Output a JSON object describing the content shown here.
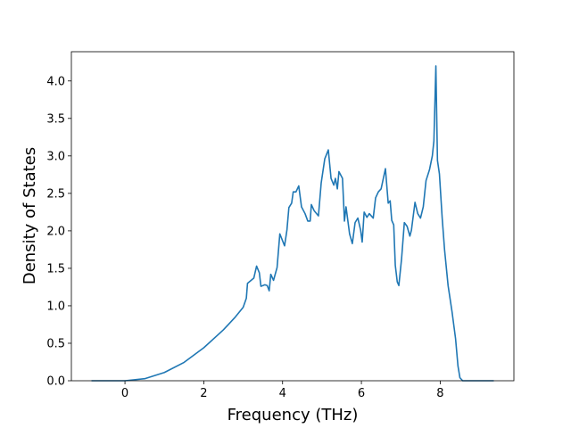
{
  "chart_data": {
    "type": "line",
    "xlabel": "Frequency (THz)",
    "ylabel": "Density of States",
    "color": "#1f77b4",
    "x": [
      -0.85,
      -0.5,
      0,
      0.5,
      1,
      1.5,
      2,
      2.5,
      2.8,
      3.0,
      3.08,
      3.11,
      3.27,
      3.34,
      3.41,
      3.45,
      3.55,
      3.61,
      3.66,
      3.7,
      3.77,
      3.86,
      3.93,
      4.05,
      4.11,
      4.16,
      4.23,
      4.27,
      4.34,
      4.41,
      4.48,
      4.57,
      4.64,
      4.7,
      4.73,
      4.8,
      4.91,
      4.98,
      5.07,
      5.16,
      5.23,
      5.3,
      5.34,
      5.39,
      5.43,
      5.52,
      5.57,
      5.61,
      5.7,
      5.77,
      5.84,
      5.91,
      5.98,
      6.02,
      6.07,
      6.14,
      6.2,
      6.3,
      6.36,
      6.43,
      6.5,
      6.61,
      6.68,
      6.73,
      6.77,
      6.82,
      6.86,
      6.91,
      6.95,
      7.02,
      7.09,
      7.16,
      7.23,
      7.27,
      7.36,
      7.43,
      7.5,
      7.57,
      7.64,
      7.73,
      7.8,
      7.84,
      7.89,
      7.93,
      7.98,
      8.05,
      8.11,
      8.2,
      8.3,
      8.39,
      8.45,
      8.5,
      8.57,
      9.36
    ],
    "values": [
      0,
      0,
      0,
      0.027,
      0.11,
      0.245,
      0.44,
      0.68,
      0.85,
      0.98,
      1.1,
      1.3,
      1.37,
      1.53,
      1.44,
      1.26,
      1.28,
      1.27,
      1.2,
      1.42,
      1.34,
      1.51,
      1.96,
      1.8,
      2.01,
      2.31,
      2.37,
      2.52,
      2.52,
      2.6,
      2.32,
      2.23,
      2.13,
      2.13,
      2.35,
      2.27,
      2.2,
      2.64,
      2.96,
      3.08,
      2.7,
      2.61,
      2.7,
      2.56,
      2.79,
      2.7,
      2.13,
      2.32,
      1.96,
      1.83,
      2.11,
      2.17,
      2.01,
      1.85,
      2.25,
      2.18,
      2.23,
      2.17,
      2.44,
      2.52,
      2.56,
      2.83,
      2.37,
      2.4,
      2.14,
      2.08,
      1.54,
      1.32,
      1.27,
      1.63,
      2.11,
      2.06,
      1.93,
      2.01,
      2.38,
      2.23,
      2.17,
      2.32,
      2.67,
      2.82,
      3.0,
      3.2,
      4.2,
      2.94,
      2.76,
      2.17,
      1.75,
      1.27,
      0.92,
      0.56,
      0.2,
      0.04,
      0,
      0
    ],
    "xlim": [
      -1.36,
      9.87
    ],
    "xticks": [
      0,
      2,
      4,
      6,
      8
    ],
    "ylim": [
      0,
      4.39
    ],
    "yticks": [
      {
        "value": 0,
        "label": "0.0"
      },
      {
        "value": 0.5,
        "label": "0.5"
      },
      {
        "value": 1,
        "label": "1.0"
      },
      {
        "value": 1.5,
        "label": "1.5"
      },
      {
        "value": 2,
        "label": "2.0"
      },
      {
        "value": 2.5,
        "label": "2.5"
      },
      {
        "value": 3,
        "label": "3.0"
      },
      {
        "value": 3.5,
        "label": "3.5"
      },
      {
        "value": 4,
        "label": "4.0"
      }
    ]
  }
}
